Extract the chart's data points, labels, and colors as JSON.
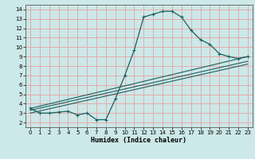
{
  "title": "",
  "xlabel": "Humidex (Indice chaleur)",
  "xlim": [
    -0.5,
    23.5
  ],
  "ylim": [
    1.5,
    14.5
  ],
  "xticks": [
    0,
    1,
    2,
    3,
    4,
    5,
    6,
    7,
    8,
    9,
    10,
    11,
    12,
    13,
    14,
    15,
    16,
    17,
    18,
    19,
    20,
    21,
    22,
    23
  ],
  "yticks": [
    2,
    3,
    4,
    5,
    6,
    7,
    8,
    9,
    10,
    11,
    12,
    13,
    14
  ],
  "bg_color": "#cce8e8",
  "grid_color": "#e8aaaa",
  "line_color": "#1a6060",
  "curve_x": [
    0,
    1,
    2,
    3,
    4,
    5,
    6,
    7,
    8,
    9,
    10,
    11,
    12,
    13,
    14,
    15,
    16,
    17,
    18,
    19,
    20,
    21,
    22,
    23
  ],
  "curve_y": [
    3.5,
    3.0,
    3.0,
    3.1,
    3.2,
    2.8,
    3.0,
    2.3,
    2.3,
    4.5,
    7.0,
    9.7,
    13.2,
    13.5,
    13.8,
    13.8,
    13.2,
    11.8,
    10.8,
    10.3,
    9.3,
    9.0,
    8.8,
    9.0
  ],
  "line1_x": [
    0,
    23
  ],
  "line1_y": [
    3.5,
    9.0
  ],
  "line2_x": [
    0,
    23
  ],
  "line2_y": [
    3.3,
    8.5
  ],
  "line3_x": [
    0,
    23
  ],
  "line3_y": [
    3.0,
    8.2
  ]
}
